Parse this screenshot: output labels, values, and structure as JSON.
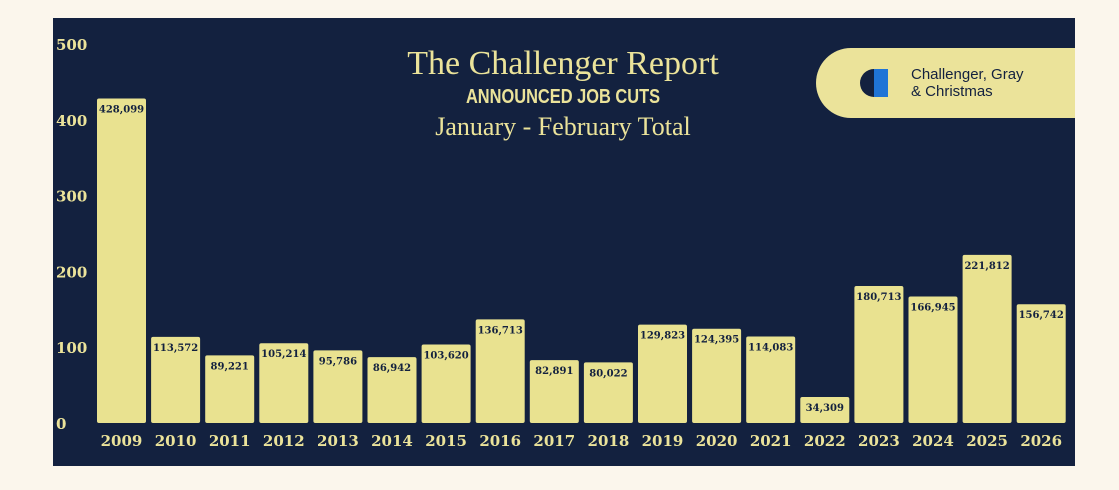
{
  "title": "The Challenger Report",
  "subtitle": "ANNOUNCED JOB CUTS",
  "period": "January - February Total",
  "brand": {
    "line1": "Challenger, Gray",
    "line2": "& Christmas"
  },
  "colors": {
    "background": "#fbf6ec",
    "panel": "#13213f",
    "accent": "#ebe39a",
    "bar": "#e9e290",
    "label_text": "#13213f",
    "logo_blue": "#1f74d6"
  },
  "chart_data": {
    "type": "bar",
    "categories": [
      "2009",
      "2010",
      "2011",
      "2012",
      "2013",
      "2014",
      "2015",
      "2016",
      "2017",
      "2018",
      "2019",
      "2020",
      "2021",
      "2022",
      "2023",
      "2024",
      "2025",
      "2026"
    ],
    "values": [
      428099,
      113572,
      89221,
      105214,
      95786,
      86942,
      103620,
      136713,
      82891,
      80022,
      129823,
      124395,
      114083,
      34309,
      180713,
      166945,
      221812,
      156742
    ],
    "value_labels": [
      "428,099",
      "113,572",
      "89,221",
      "105,214",
      "95,786",
      "86,942",
      "103,620",
      "136,713",
      "82,891",
      "80,022",
      "129,823",
      "124,395",
      "114,083",
      "34,309",
      "180,713",
      "166,945",
      "221,812",
      "156,742"
    ],
    "y_ticks": [
      0,
      100,
      200,
      300,
      400,
      500
    ],
    "y_scale": 1000,
    "ylim": [
      0,
      500000
    ],
    "grid": false,
    "legend": "none"
  }
}
